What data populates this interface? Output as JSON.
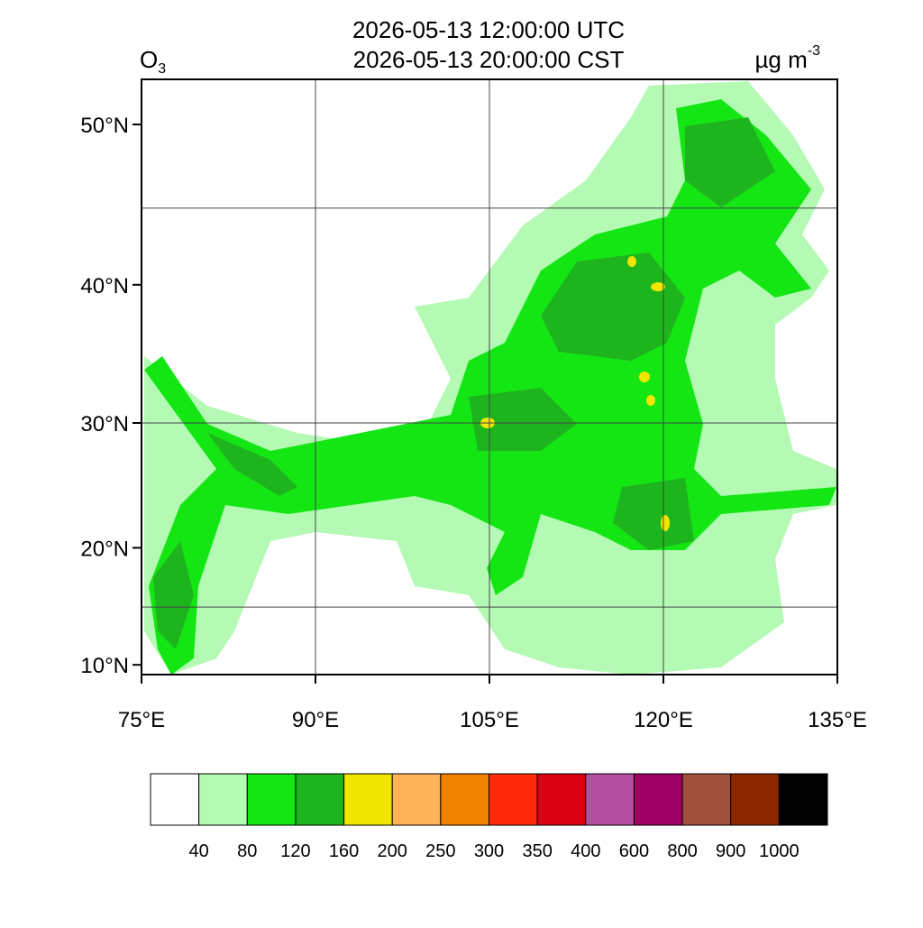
{
  "title": {
    "utc": "2026-05-13 12:00:00 UTC",
    "local": "2026-05-13 20:00:00 CST"
  },
  "variable": {
    "base": "O",
    "sub": "3"
  },
  "units": {
    "base": "µg m",
    "sup": "-3"
  },
  "map": {
    "projection": "mercator",
    "lonlim": [
      75,
      135
    ],
    "latlim": [
      9.15,
      52.5
    ],
    "lon_ticks": [
      {
        "value": 75,
        "label": "75°E"
      },
      {
        "value": 90,
        "label": "90°E"
      },
      {
        "value": 105,
        "label": "105°E"
      },
      {
        "value": 120,
        "label": "120°E"
      },
      {
        "value": 135,
        "label": "135°E"
      }
    ],
    "lat_ticks": [
      {
        "value": 10,
        "label": "10°N"
      },
      {
        "value": 20,
        "label": "20°N"
      },
      {
        "value": 30,
        "label": "30°N"
      },
      {
        "value": 40,
        "label": "40°N"
      },
      {
        "value": 50,
        "label": "50°N"
      }
    ],
    "lon_grid": [
      90,
      105,
      120
    ],
    "lat_grid": [
      15,
      30,
      45
    ]
  },
  "colorbar": {
    "colors": [
      "#ffffff",
      "#b4fab4",
      "#14e614",
      "#1eb41e",
      "#f0e600",
      "#ffb45a",
      "#f08200",
      "#ff2a0a",
      "#dc0014",
      "#b450a0",
      "#a00064",
      "#a0503c",
      "#8c2800",
      "#000000"
    ],
    "labels": [
      "40",
      "80",
      "120",
      "160",
      "200",
      "250",
      "300",
      "350",
      "400",
      "600",
      "800",
      "900",
      "1000"
    ]
  }
}
